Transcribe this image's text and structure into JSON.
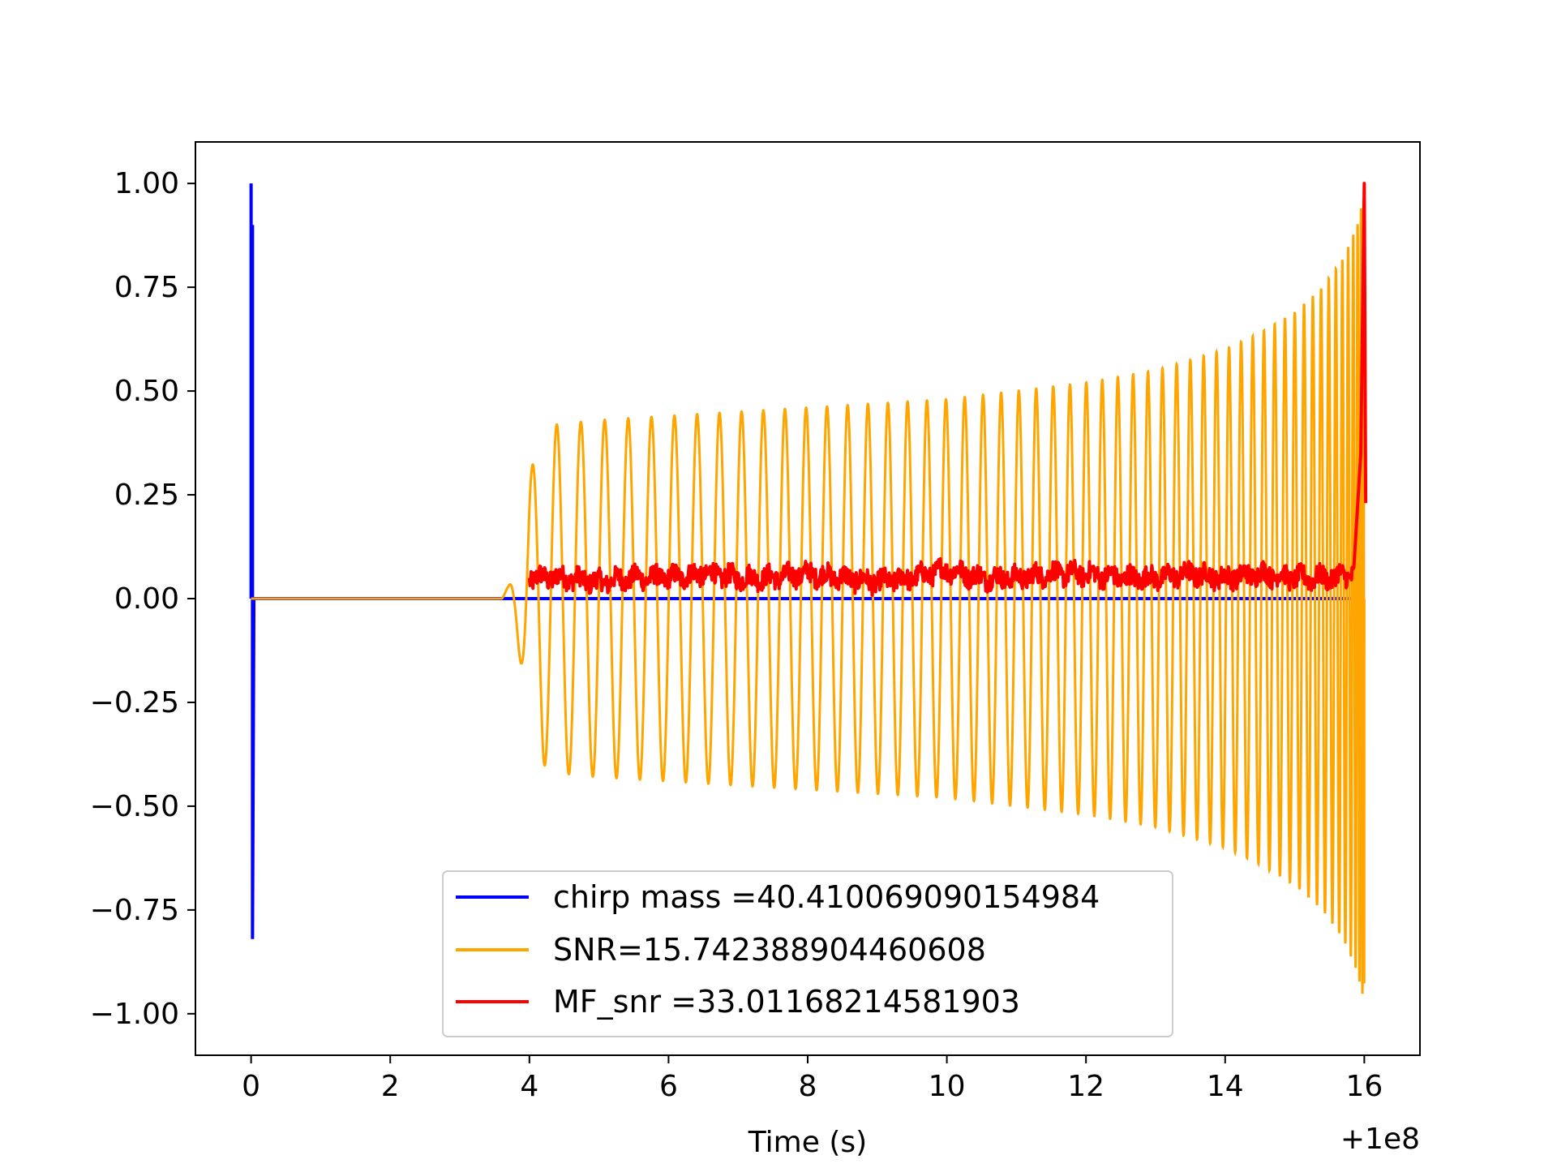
{
  "chart_data": {
    "type": "line",
    "title": "",
    "xlabel": "Time (s)",
    "ylabel": "",
    "x_offset_label": "+1e8",
    "xlim": [
      -0.8,
      16.8
    ],
    "ylim": [
      -1.1,
      1.1
    ],
    "x_ticks": [
      0,
      2,
      4,
      6,
      8,
      10,
      12,
      14,
      16
    ],
    "x_tick_labels": [
      "0",
      "2",
      "4",
      "6",
      "8",
      "10",
      "12",
      "14",
      "16"
    ],
    "y_ticks": [
      1.0,
      0.75,
      0.5,
      0.25,
      0.0,
      -0.25,
      -0.5,
      -0.75,
      -1.0
    ],
    "y_tick_labels": [
      "1.00",
      "0.75",
      "0.50",
      "0.25",
      "0.00",
      "−0.25",
      "−0.50",
      "−0.75",
      "−1.00"
    ],
    "grid": false,
    "legend_position": "lower center",
    "series": [
      {
        "name": "chirp mass =40.410069090154984",
        "color": "#0000ff",
        "x": [
          0.0,
          0.0,
          0.02,
          0.02,
          0.04,
          0.04,
          0.06,
          16.0
        ],
        "y": [
          1.0,
          0.0,
          0.9,
          -0.82,
          0.0,
          0.0,
          0.0,
          0.0
        ]
      },
      {
        "name": "SNR=15.742388904460608",
        "color": "#ffa500",
        "envelope": {
          "x": [
            3.6,
            3.7,
            3.8,
            3.9,
            4.0,
            4.2,
            4.4,
            5.0,
            6.0,
            7.0,
            8.0,
            9.0,
            10.0,
            11.0,
            12.0,
            13.0,
            14.0,
            14.5,
            15.0,
            15.4,
            15.7,
            15.9,
            16.0
          ],
          "amplitude": [
            0.005,
            0.03,
            0.08,
            0.18,
            0.3,
            0.4,
            0.42,
            0.43,
            0.44,
            0.45,
            0.46,
            0.47,
            0.48,
            0.5,
            0.52,
            0.55,
            0.6,
            0.64,
            0.69,
            0.75,
            0.82,
            0.9,
            0.98
          ]
        }
      },
      {
        "name": "MF_snr =33.01168214581903",
        "color": "#ff0000",
        "x": [
          4.0,
          4.5,
          5.0,
          5.5,
          6.0,
          6.5,
          7.0,
          7.5,
          8.0,
          8.5,
          9.0,
          9.5,
          10.0,
          10.5,
          11.0,
          11.5,
          12.0,
          12.5,
          13.0,
          13.5,
          14.0,
          14.5,
          15.0,
          15.5,
          15.85,
          15.95,
          16.0,
          16.02
        ],
        "y": [
          0.05,
          0.05,
          0.04,
          0.05,
          0.05,
          0.06,
          0.05,
          0.05,
          0.06,
          0.05,
          0.04,
          0.05,
          0.07,
          0.05,
          0.05,
          0.06,
          0.06,
          0.05,
          0.05,
          0.06,
          0.05,
          0.06,
          0.05,
          0.05,
          0.06,
          0.35,
          1.0,
          0.23
        ]
      }
    ]
  }
}
